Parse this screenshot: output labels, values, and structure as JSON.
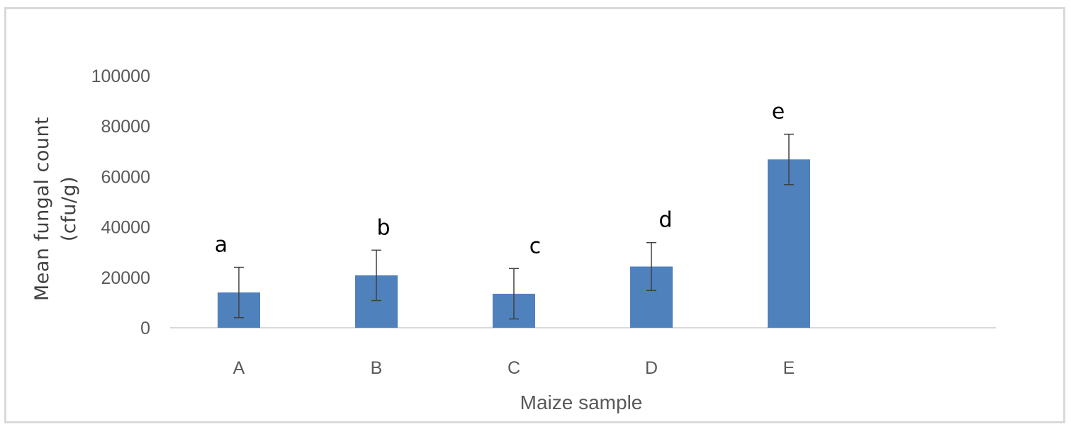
{
  "chart_data": {
    "type": "bar",
    "categories": [
      "A",
      "B",
      "C",
      "D",
      "E"
    ],
    "values": [
      14000,
      20800,
      13500,
      24300,
      66800
    ],
    "errors": [
      10000,
      10000,
      10000,
      9500,
      10000
    ],
    "data_labels": [
      "a",
      "b",
      "c",
      "d",
      "e"
    ],
    "xlabel": "Maize sample",
    "ylabel_lines": [
      "Mean fungal count",
      "(cfu/g)"
    ],
    "ylim": [
      0,
      100000
    ],
    "yticks": [
      "0",
      "20000",
      "40000",
      "60000",
      "80000",
      "100000"
    ],
    "ytick_values": [
      0,
      20000,
      40000,
      60000,
      80000,
      100000
    ],
    "grid": false,
    "legend": "none",
    "colors": {
      "bar": "#4f81bd",
      "axis": "#d9d9d9",
      "error_bar": "#404040",
      "text": "#595959"
    }
  }
}
